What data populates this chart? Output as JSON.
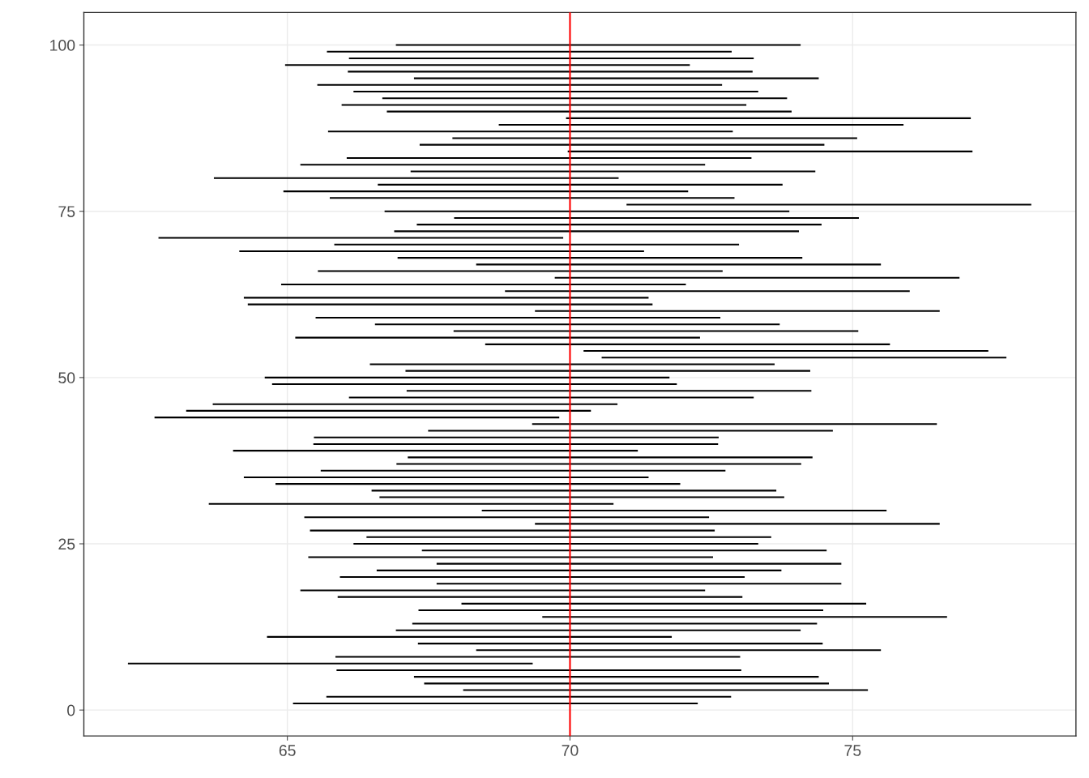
{
  "chart_data": {
    "type": "line",
    "marker": "none",
    "line_style": "solid",
    "color": "#000000",
    "series": [
      {
        "x": [
          65.1,
          72.26
        ],
        "values": [
          1,
          1
        ]
      },
      {
        "x": [
          65.69,
          72.85
        ],
        "values": [
          2,
          2
        ]
      },
      {
        "x": [
          68.11,
          75.27
        ],
        "values": [
          3,
          3
        ]
      },
      {
        "x": [
          67.42,
          74.58
        ],
        "values": [
          4,
          4
        ]
      },
      {
        "x": [
          67.24,
          74.4
        ],
        "values": [
          5,
          5
        ]
      },
      {
        "x": [
          65.87,
          73.03
        ],
        "values": [
          6,
          6
        ]
      },
      {
        "x": [
          62.18,
          69.34
        ],
        "values": [
          7,
          7
        ]
      },
      {
        "x": [
          65.85,
          73.01
        ],
        "values": [
          8,
          8
        ]
      },
      {
        "x": [
          68.34,
          75.5
        ],
        "values": [
          9,
          9
        ]
      },
      {
        "x": [
          67.31,
          74.47
        ],
        "values": [
          10,
          10
        ]
      },
      {
        "x": [
          64.64,
          71.8
        ],
        "values": [
          11,
          11
        ]
      },
      {
        "x": [
          66.92,
          74.08
        ],
        "values": [
          12,
          12
        ]
      },
      {
        "x": [
          67.21,
          74.37
        ],
        "values": [
          13,
          13
        ]
      },
      {
        "x": [
          69.51,
          76.67
        ],
        "values": [
          14,
          14
        ]
      },
      {
        "x": [
          67.32,
          74.48
        ],
        "values": [
          15,
          15
        ]
      },
      {
        "x": [
          68.08,
          75.24
        ],
        "values": [
          16,
          16
        ]
      },
      {
        "x": [
          65.89,
          73.05
        ],
        "values": [
          17,
          17
        ]
      },
      {
        "x": [
          65.23,
          72.39
        ],
        "values": [
          18,
          18
        ]
      },
      {
        "x": [
          67.64,
          74.8
        ],
        "values": [
          19,
          19
        ]
      },
      {
        "x": [
          65.93,
          73.09
        ],
        "values": [
          20,
          20
        ]
      },
      {
        "x": [
          66.58,
          73.74
        ],
        "values": [
          21,
          21
        ]
      },
      {
        "x": [
          67.64,
          74.8
        ],
        "values": [
          22,
          22
        ]
      },
      {
        "x": [
          65.37,
          72.53
        ],
        "values": [
          23,
          23
        ]
      },
      {
        "x": [
          67.38,
          74.54
        ],
        "values": [
          24,
          24
        ]
      },
      {
        "x": [
          66.17,
          73.33
        ],
        "values": [
          25,
          25
        ]
      },
      {
        "x": [
          66.4,
          73.56
        ],
        "values": [
          26,
          26
        ]
      },
      {
        "x": [
          65.4,
          72.56
        ],
        "values": [
          27,
          27
        ]
      },
      {
        "x": [
          69.38,
          76.54
        ],
        "values": [
          28,
          28
        ]
      },
      {
        "x": [
          65.3,
          72.46
        ],
        "values": [
          29,
          29
        ]
      },
      {
        "x": [
          68.44,
          75.6
        ],
        "values": [
          30,
          30
        ]
      },
      {
        "x": [
          63.61,
          70.77
        ],
        "values": [
          31,
          31
        ]
      },
      {
        "x": [
          66.63,
          73.79
        ],
        "values": [
          32,
          32
        ]
      },
      {
        "x": [
          66.49,
          73.65
        ],
        "values": [
          33,
          33
        ]
      },
      {
        "x": [
          64.79,
          71.95
        ],
        "values": [
          34,
          34
        ]
      },
      {
        "x": [
          64.23,
          71.39
        ],
        "values": [
          35,
          35
        ]
      },
      {
        "x": [
          65.59,
          72.75
        ],
        "values": [
          36,
          36
        ]
      },
      {
        "x": [
          66.93,
          74.09
        ],
        "values": [
          37,
          37
        ]
      },
      {
        "x": [
          67.13,
          74.29
        ],
        "values": [
          38,
          38
        ]
      },
      {
        "x": [
          64.04,
          71.2
        ],
        "values": [
          39,
          39
        ]
      },
      {
        "x": [
          65.46,
          72.62
        ],
        "values": [
          40,
          40
        ]
      },
      {
        "x": [
          65.47,
          72.63
        ],
        "values": [
          41,
          41
        ]
      },
      {
        "x": [
          67.49,
          74.65
        ],
        "values": [
          42,
          42
        ]
      },
      {
        "x": [
          69.33,
          76.49
        ],
        "values": [
          43,
          43
        ]
      },
      {
        "x": [
          62.65,
          69.81
        ],
        "values": [
          44,
          44
        ]
      },
      {
        "x": [
          63.21,
          70.37
        ],
        "values": [
          45,
          45
        ]
      },
      {
        "x": [
          63.68,
          70.84
        ],
        "values": [
          46,
          46
        ]
      },
      {
        "x": [
          66.09,
          73.25
        ],
        "values": [
          47,
          47
        ]
      },
      {
        "x": [
          67.11,
          74.27
        ],
        "values": [
          48,
          48
        ]
      },
      {
        "x": [
          64.73,
          71.89
        ],
        "values": [
          49,
          49
        ]
      },
      {
        "x": [
          64.6,
          71.76
        ],
        "values": [
          50,
          50
        ]
      },
      {
        "x": [
          67.09,
          74.25
        ],
        "values": [
          51,
          51
        ]
      },
      {
        "x": [
          66.46,
          73.62
        ],
        "values": [
          52,
          52
        ]
      },
      {
        "x": [
          70.56,
          77.72
        ],
        "values": [
          53,
          53
        ]
      },
      {
        "x": [
          70.24,
          77.4
        ],
        "values": [
          54,
          54
        ]
      },
      {
        "x": [
          68.5,
          75.66
        ],
        "values": [
          55,
          55
        ]
      },
      {
        "x": [
          65.14,
          72.3
        ],
        "values": [
          56,
          56
        ]
      },
      {
        "x": [
          67.94,
          75.1
        ],
        "values": [
          57,
          57
        ]
      },
      {
        "x": [
          66.55,
          73.71
        ],
        "values": [
          58,
          58
        ]
      },
      {
        "x": [
          65.5,
          72.66
        ],
        "values": [
          59,
          59
        ]
      },
      {
        "x": [
          69.38,
          76.54
        ],
        "values": [
          60,
          60
        ]
      },
      {
        "x": [
          64.3,
          71.46
        ],
        "values": [
          61,
          61
        ]
      },
      {
        "x": [
          64.23,
          71.39
        ],
        "values": [
          62,
          62
        ]
      },
      {
        "x": [
          68.85,
          76.01
        ],
        "values": [
          63,
          63
        ]
      },
      {
        "x": [
          64.89,
          72.05
        ],
        "values": [
          64,
          64
        ]
      },
      {
        "x": [
          69.73,
          76.89
        ],
        "values": [
          65,
          65
        ]
      },
      {
        "x": [
          65.54,
          72.7
        ],
        "values": [
          66,
          66
        ]
      },
      {
        "x": [
          68.34,
          75.5
        ],
        "values": [
          67,
          67
        ]
      },
      {
        "x": [
          66.95,
          74.11
        ],
        "values": [
          68,
          68
        ]
      },
      {
        "x": [
          64.15,
          71.31
        ],
        "values": [
          69,
          69
        ]
      },
      {
        "x": [
          65.83,
          72.99
        ],
        "values": [
          70,
          70
        ]
      },
      {
        "x": [
          62.72,
          69.88
        ],
        "values": [
          71,
          71
        ]
      },
      {
        "x": [
          66.89,
          74.05
        ],
        "values": [
          72,
          72
        ]
      },
      {
        "x": [
          67.29,
          74.45
        ],
        "values": [
          73,
          73
        ]
      },
      {
        "x": [
          67.95,
          75.11
        ],
        "values": [
          74,
          74
        ]
      },
      {
        "x": [
          66.72,
          73.88
        ],
        "values": [
          75,
          75
        ]
      },
      {
        "x": [
          71.0,
          78.16
        ],
        "values": [
          76,
          76
        ]
      },
      {
        "x": [
          65.75,
          72.91
        ],
        "values": [
          77,
          77
        ]
      },
      {
        "x": [
          64.93,
          72.09
        ],
        "values": [
          78,
          78
        ]
      },
      {
        "x": [
          66.6,
          73.76
        ],
        "values": [
          79,
          79
        ]
      },
      {
        "x": [
          63.7,
          70.86
        ],
        "values": [
          80,
          80
        ]
      },
      {
        "x": [
          67.18,
          74.34
        ],
        "values": [
          81,
          81
        ]
      },
      {
        "x": [
          65.23,
          72.39
        ],
        "values": [
          82,
          82
        ]
      },
      {
        "x": [
          66.05,
          73.21
        ],
        "values": [
          83,
          83
        ]
      },
      {
        "x": [
          69.96,
          77.12
        ],
        "values": [
          84,
          84
        ]
      },
      {
        "x": [
          67.34,
          74.5
        ],
        "values": [
          85,
          85
        ]
      },
      {
        "x": [
          67.92,
          75.08
        ],
        "values": [
          86,
          86
        ]
      },
      {
        "x": [
          65.72,
          72.88
        ],
        "values": [
          87,
          87
        ]
      },
      {
        "x": [
          68.74,
          75.9
        ],
        "values": [
          88,
          88
        ]
      },
      {
        "x": [
          69.93,
          77.09
        ],
        "values": [
          89,
          89
        ]
      },
      {
        "x": [
          66.76,
          73.92
        ],
        "values": [
          90,
          90
        ]
      },
      {
        "x": [
          65.96,
          73.12
        ],
        "values": [
          91,
          91
        ]
      },
      {
        "x": [
          66.68,
          73.84
        ],
        "values": [
          92,
          92
        ]
      },
      {
        "x": [
          66.17,
          73.33
        ],
        "values": [
          93,
          93
        ]
      },
      {
        "x": [
          65.53,
          72.69
        ],
        "values": [
          94,
          94
        ]
      },
      {
        "x": [
          67.24,
          74.4
        ],
        "values": [
          95,
          95
        ]
      },
      {
        "x": [
          66.07,
          73.23
        ],
        "values": [
          96,
          96
        ]
      },
      {
        "x": [
          64.96,
          72.12
        ],
        "values": [
          97,
          97
        ]
      },
      {
        "x": [
          66.09,
          73.25
        ],
        "values": [
          98,
          98
        ]
      },
      {
        "x": [
          65.7,
          72.86
        ],
        "values": [
          99,
          99
        ]
      },
      {
        "x": [
          66.92,
          74.08
        ],
        "values": [
          100,
          100
        ]
      }
    ],
    "xlim": [
      61.4,
      78.95
    ],
    "ylim": [
      -3.9,
      104.9
    ],
    "xticks": [
      65,
      70,
      75
    ],
    "yticks": [
      0,
      25,
      50,
      75,
      100
    ],
    "grid": true,
    "ref_lines": [
      {
        "axis": "x",
        "value": 70,
        "color": "#ff0000"
      }
    ]
  }
}
